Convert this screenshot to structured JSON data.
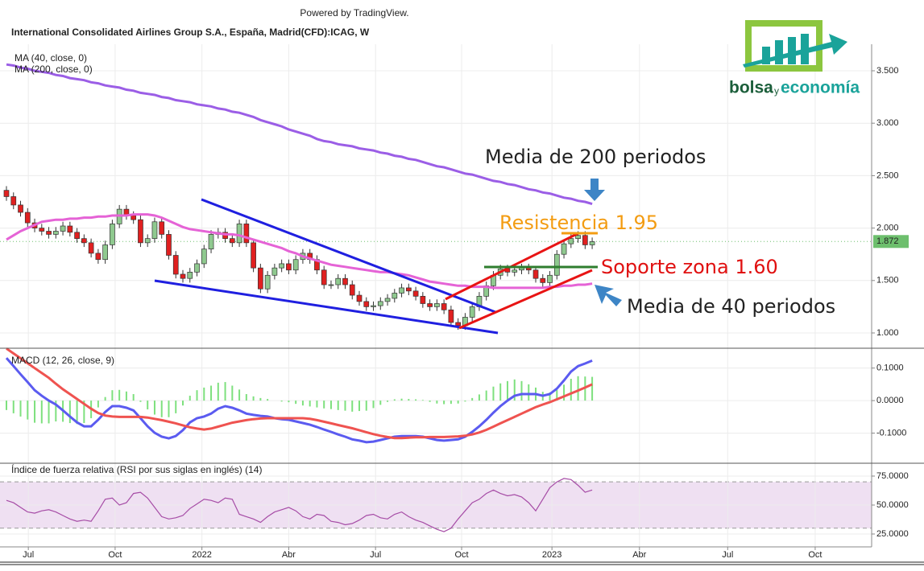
{
  "powered_by": "Powered by TradingView.",
  "header_title": "International Consolidated Airlines Group S.A., España, Madrid(CFD):ICAG, W",
  "logo": {
    "word1": "bolsa",
    "word2": "y",
    "word3": "economía"
  },
  "chart_data": [
    {
      "type": "candlestick",
      "up_color": "#8fc98f",
      "down_color": "#e02020",
      "open": [
        2.36,
        2.3,
        2.22,
        2.15,
        2.05,
        2.0,
        1.97,
        1.94,
        1.97,
        2.02,
        1.96,
        1.9,
        1.86,
        1.76,
        1.7,
        1.84,
        2.04,
        2.18,
        2.12,
        2.08,
        1.86,
        1.9,
        2.06,
        1.94,
        1.74,
        1.56,
        1.52,
        1.58,
        1.66,
        1.8,
        1.94,
        1.96,
        1.9,
        1.86,
        2.04,
        1.86,
        1.62,
        1.42,
        1.55,
        1.62,
        1.66,
        1.6,
        1.7,
        1.76,
        1.7,
        1.6,
        1.46,
        1.46,
        1.52,
        1.46,
        1.36,
        1.3,
        1.25,
        1.26,
        1.3,
        1.33,
        1.38,
        1.43,
        1.4,
        1.35,
        1.28,
        1.25,
        1.28,
        1.22,
        1.1,
        1.07,
        1.15,
        1.25,
        1.35,
        1.45,
        1.55,
        1.61,
        1.58,
        1.6,
        1.62,
        1.6,
        1.52,
        1.48,
        1.55,
        1.75,
        1.85,
        1.9,
        1.93,
        1.84
      ],
      "high": [
        2.4,
        2.34,
        2.26,
        2.19,
        2.09,
        2.04,
        2.01,
        2.01,
        2.06,
        2.06,
        2.0,
        1.94,
        1.9,
        1.8,
        1.88,
        2.08,
        2.22,
        2.22,
        2.16,
        2.12,
        1.94,
        2.1,
        2.1,
        1.98,
        1.78,
        1.6,
        1.62,
        1.7,
        1.84,
        1.98,
        2.0,
        2.0,
        1.94,
        2.08,
        2.08,
        1.9,
        1.66,
        1.59,
        1.66,
        1.7,
        1.7,
        1.74,
        1.8,
        1.8,
        1.74,
        1.64,
        1.5,
        1.56,
        1.56,
        1.5,
        1.4,
        1.34,
        1.3,
        1.34,
        1.37,
        1.42,
        1.47,
        1.47,
        1.44,
        1.39,
        1.32,
        1.32,
        1.32,
        1.26,
        1.14,
        1.19,
        1.29,
        1.39,
        1.49,
        1.59,
        1.65,
        1.65,
        1.64,
        1.66,
        1.66,
        1.64,
        1.56,
        1.59,
        1.79,
        1.89,
        1.94,
        1.97,
        1.97,
        1.91
      ],
      "low": [
        2.26,
        2.18,
        2.11,
        2.01,
        1.96,
        1.93,
        1.9,
        1.9,
        1.93,
        1.92,
        1.86,
        1.82,
        1.72,
        1.66,
        1.66,
        1.8,
        2.0,
        2.08,
        2.04,
        1.82,
        1.82,
        1.86,
        1.9,
        1.7,
        1.52,
        1.48,
        1.48,
        1.54,
        1.62,
        1.76,
        1.9,
        1.86,
        1.82,
        1.82,
        1.82,
        1.58,
        1.38,
        1.38,
        1.51,
        1.58,
        1.56,
        1.56,
        1.66,
        1.66,
        1.56,
        1.42,
        1.42,
        1.42,
        1.42,
        1.32,
        1.26,
        1.21,
        1.21,
        1.22,
        1.26,
        1.29,
        1.34,
        1.36,
        1.31,
        1.24,
        1.21,
        1.21,
        1.18,
        1.06,
        1.03,
        1.03,
        1.11,
        1.21,
        1.31,
        1.41,
        1.51,
        1.54,
        1.54,
        1.56,
        1.56,
        1.48,
        1.44,
        1.44,
        1.51,
        1.71,
        1.81,
        1.86,
        1.8,
        1.8
      ],
      "close": [
        2.3,
        2.22,
        2.15,
        2.05,
        2.0,
        1.97,
        1.94,
        1.97,
        2.02,
        1.96,
        1.9,
        1.86,
        1.76,
        1.7,
        1.84,
        2.04,
        2.18,
        2.12,
        2.08,
        1.86,
        1.9,
        2.06,
        1.94,
        1.74,
        1.56,
        1.52,
        1.58,
        1.66,
        1.8,
        1.94,
        1.96,
        1.9,
        1.86,
        2.04,
        1.86,
        1.62,
        1.42,
        1.55,
        1.62,
        1.66,
        1.6,
        1.7,
        1.76,
        1.7,
        1.6,
        1.46,
        1.46,
        1.52,
        1.46,
        1.36,
        1.3,
        1.25,
        1.26,
        1.3,
        1.33,
        1.38,
        1.43,
        1.4,
        1.35,
        1.28,
        1.25,
        1.28,
        1.22,
        1.1,
        1.07,
        1.15,
        1.25,
        1.35,
        1.45,
        1.55,
        1.61,
        1.58,
        1.6,
        1.62,
        1.6,
        1.52,
        1.48,
        1.55,
        1.75,
        1.85,
        1.9,
        1.93,
        1.84,
        1.87
      ],
      "series": [
        {
          "name": "MA (40, close, 0)",
          "color": "#e563d6",
          "values": [
            1.89,
            1.93,
            1.97,
            2.0,
            2.03,
            2.06,
            2.07,
            2.08,
            2.08,
            2.09,
            2.09,
            2.1,
            2.1,
            2.11,
            2.11,
            2.12,
            2.12,
            2.12,
            2.13,
            2.13,
            2.13,
            2.12,
            2.1,
            2.07,
            2.04,
            2.01,
            1.99,
            1.98,
            1.97,
            1.96,
            1.95,
            1.94,
            1.94,
            1.93,
            1.91,
            1.89,
            1.87,
            1.85,
            1.83,
            1.81,
            1.78,
            1.76,
            1.73,
            1.71,
            1.69,
            1.67,
            1.65,
            1.64,
            1.63,
            1.62,
            1.61,
            1.6,
            1.59,
            1.58,
            1.58,
            1.57,
            1.56,
            1.55,
            1.53,
            1.51,
            1.49,
            1.48,
            1.47,
            1.46,
            1.45,
            1.45,
            1.44,
            1.44,
            1.44,
            1.43,
            1.43,
            1.43,
            1.43,
            1.43,
            1.43,
            1.43,
            1.43,
            1.44,
            1.44,
            1.45,
            1.45,
            1.46,
            1.46,
            1.47
          ]
        },
        {
          "name": "MA (200, close, 0)",
          "color": "#9b5ee6",
          "values": [
            3.56,
            3.55,
            3.53,
            3.52,
            3.5,
            3.49,
            3.48,
            3.46,
            3.45,
            3.43,
            3.42,
            3.41,
            3.39,
            3.38,
            3.36,
            3.35,
            3.34,
            3.32,
            3.31,
            3.29,
            3.28,
            3.27,
            3.25,
            3.24,
            3.22,
            3.21,
            3.2,
            3.18,
            3.17,
            3.16,
            3.14,
            3.13,
            3.11,
            3.1,
            3.08,
            3.06,
            3.03,
            3.01,
            2.99,
            2.97,
            2.94,
            2.92,
            2.9,
            2.88,
            2.85,
            2.83,
            2.82,
            2.8,
            2.79,
            2.78,
            2.76,
            2.75,
            2.74,
            2.72,
            2.71,
            2.69,
            2.68,
            2.66,
            2.65,
            2.63,
            2.61,
            2.59,
            2.58,
            2.56,
            2.54,
            2.52,
            2.51,
            2.49,
            2.47,
            2.45,
            2.44,
            2.42,
            2.41,
            2.39,
            2.37,
            2.36,
            2.34,
            2.33,
            2.31,
            2.29,
            2.28,
            2.26,
            2.25,
            2.23
          ]
        }
      ],
      "last_value": 1.872,
      "last_value_color": "#6dbf6d",
      "xlim": [
        -0.913,
        122.6
      ],
      "ylim": [
        0.862,
        3.753
      ],
      "yticks": [
        {
          "value": 1,
          "label": "1.000"
        },
        {
          "value": 1.5,
          "label": "1.500"
        },
        {
          "value": 2,
          "label": "2.000"
        },
        {
          "value": 2.5,
          "label": "2.500"
        },
        {
          "value": 3,
          "label": "3.000"
        },
        {
          "value": 3.5,
          "label": "3.500"
        }
      ],
      "grid": true,
      "annotations": [
        {
          "text": "Media de 200 periodos",
          "color": "#222222"
        },
        {
          "text": "Resistencia 1.95",
          "color": "#f39c12"
        },
        {
          "text": "Soporte zona 1.60",
          "color": "#e01010"
        },
        {
          "text": "Media de 40 periodos",
          "color": "#222222"
        }
      ]
    },
    {
      "type": "macd",
      "title": "MACD (12, 26, close, 9)",
      "macd": {
        "color": "#5b5bf0",
        "values": [
          0.131,
          0.106,
          0.081,
          0.057,
          0.032,
          0.015,
          0,
          -0.012,
          -0.03,
          -0.049,
          -0.067,
          -0.079,
          -0.079,
          -0.059,
          -0.035,
          -0.017,
          -0.017,
          -0.022,
          -0.03,
          -0.054,
          -0.079,
          -0.099,
          -0.111,
          -0.116,
          -0.109,
          -0.091,
          -0.067,
          -0.054,
          -0.049,
          -0.04,
          -0.025,
          -0.017,
          -0.022,
          -0.03,
          -0.04,
          -0.044,
          -0.047,
          -0.049,
          -0.054,
          -0.057,
          -0.059,
          -0.064,
          -0.069,
          -0.074,
          -0.081,
          -0.089,
          -0.096,
          -0.104,
          -0.111,
          -0.119,
          -0.123,
          -0.128,
          -0.126,
          -0.121,
          -0.116,
          -0.111,
          -0.109,
          -0.109,
          -0.109,
          -0.111,
          -0.116,
          -0.121,
          -0.123,
          -0.121,
          -0.119,
          -0.111,
          -0.096,
          -0.079,
          -0.059,
          -0.037,
          -0.017,
          0,
          0.015,
          0.02,
          0.02,
          0.02,
          0.015,
          0.02,
          0.037,
          0.062,
          0.089,
          0.106,
          0.114,
          0.123
        ]
      },
      "signal": {
        "color": "#ef5350",
        "values": [
          0.16,
          0.145,
          0.13,
          0.115,
          0.1,
          0.085,
          0.07,
          0.052,
          0.035,
          0.02,
          0.005,
          -0.01,
          -0.025,
          -0.038,
          -0.046,
          -0.049,
          -0.05,
          -0.05,
          -0.05,
          -0.05,
          -0.052,
          -0.056,
          -0.06,
          -0.065,
          -0.07,
          -0.076,
          -0.082,
          -0.086,
          -0.089,
          -0.086,
          -0.08,
          -0.074,
          -0.068,
          -0.064,
          -0.06,
          -0.057,
          -0.055,
          -0.054,
          -0.054,
          -0.054,
          -0.054,
          -0.054,
          -0.054,
          -0.056,
          -0.06,
          -0.065,
          -0.07,
          -0.075,
          -0.08,
          -0.085,
          -0.091,
          -0.097,
          -0.103,
          -0.108,
          -0.112,
          -0.115,
          -0.115,
          -0.114,
          -0.113,
          -0.113,
          -0.112,
          -0.112,
          -0.112,
          -0.111,
          -0.11,
          -0.108,
          -0.104,
          -0.098,
          -0.09,
          -0.08,
          -0.07,
          -0.06,
          -0.05,
          -0.04,
          -0.03,
          -0.02,
          -0.012,
          -0.005,
          0.004,
          0.013,
          0.022,
          0.031,
          0.04,
          0.05
        ]
      },
      "histogram": {
        "color": "#7ee07e",
        "values": [
          -0.029,
          -0.039,
          -0.049,
          -0.058,
          -0.068,
          -0.07,
          -0.07,
          -0.064,
          -0.065,
          -0.069,
          -0.072,
          -0.069,
          -0.054,
          -0.021,
          0.011,
          0.032,
          0.033,
          0.028,
          0.02,
          -0.004,
          -0.027,
          -0.043,
          -0.051,
          -0.051,
          -0.039,
          -0.015,
          0.015,
          0.032,
          0.04,
          0.046,
          0.055,
          0.057,
          0.046,
          0.034,
          0.02,
          0.013,
          0.008,
          0.005,
          0,
          -0.003,
          -0.005,
          -0.01,
          -0.015,
          -0.018,
          -0.021,
          -0.024,
          -0.026,
          -0.029,
          -0.031,
          -0.034,
          -0.032,
          -0.031,
          -0.023,
          -0.013,
          -0.004,
          0.004,
          0.006,
          0.005,
          0.004,
          0.002,
          -0.004,
          -0.009,
          -0.011,
          -0.01,
          -0.009,
          -0.003,
          0.008,
          0.019,
          0.031,
          0.043,
          0.053,
          0.06,
          0.065,
          0.06,
          0.05,
          0.04,
          0.027,
          0.025,
          0.033,
          0.049,
          0.067,
          0.075,
          0.074,
          0.073
        ]
      },
      "xlim": [
        -0.913,
        122.6
      ],
      "ylim": [
        -0.19,
        0.156
      ],
      "yticks": [
        {
          "value": -0.1,
          "label": "-0.1000"
        },
        {
          "value": 0,
          "label": "0.0000"
        },
        {
          "value": 0.1,
          "label": "0.1000"
        }
      ],
      "grid": true
    },
    {
      "type": "rsi",
      "title": "Índice de fuerza relativa (RSI por sus siglas en inglés) (14)",
      "color": "#a64ca6",
      "band_color": "#efe0f2",
      "bands": [
        30,
        70
      ],
      "values": [
        54,
        52,
        48,
        44,
        43,
        45,
        46,
        44,
        41,
        38,
        36,
        37,
        36,
        45,
        55,
        56,
        50,
        52,
        60,
        61,
        56,
        48,
        40,
        38,
        39,
        41,
        47,
        51,
        55,
        54,
        52,
        56,
        55,
        42,
        40,
        38,
        35,
        40,
        44,
        46,
        48,
        45,
        40,
        38,
        42,
        41,
        36,
        35,
        33,
        34,
        37,
        41,
        42,
        39,
        38,
        42,
        44,
        40,
        37,
        35,
        32,
        29,
        27,
        30,
        38,
        45,
        52,
        55,
        60,
        63,
        60,
        58,
        59,
        57,
        52,
        45,
        55,
        65,
        70,
        73,
        72,
        67,
        61,
        63
      ],
      "xlim": [
        -0.913,
        122.6
      ],
      "ylim": [
        13.9,
        84.7
      ],
      "yticks": [
        {
          "value": 25,
          "label": "25.0000"
        },
        {
          "value": 50,
          "label": "50.0000"
        },
        {
          "value": 75,
          "label": "75.0000"
        }
      ],
      "xticks": [
        {
          "value": 3.1,
          "label": "Jul"
        },
        {
          "value": 15.4,
          "label": "Oct"
        },
        {
          "value": 27.7,
          "label": "2022"
        },
        {
          "value": 40,
          "label": "Abr"
        },
        {
          "value": 52.3,
          "label": "Jul"
        },
        {
          "value": 64.5,
          "label": "Oct"
        },
        {
          "value": 77.3,
          "label": "2023"
        },
        {
          "value": 89.7,
          "label": "Abr"
        },
        {
          "value": 102.2,
          "label": "Jul"
        },
        {
          "value": 114.6,
          "label": "Oct"
        }
      ],
      "grid": true
    }
  ]
}
